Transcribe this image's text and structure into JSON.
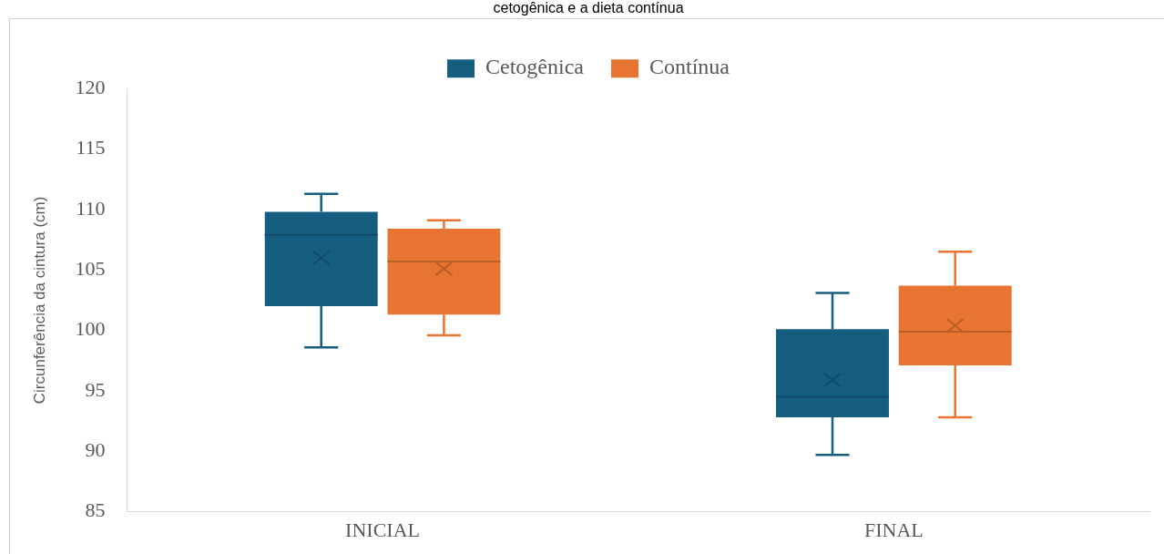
{
  "chart_data": {
    "type": "box",
    "title": "cetogênica e a dieta contínua",
    "ylabel": "Circunferência da cintura (cm)",
    "categories": [
      "INICIAL",
      "FINAL"
    ],
    "series": [
      {
        "name": "Cetogênica",
        "color": "#165e80",
        "boxes": [
          {
            "low": 98.6,
            "q1": 102.0,
            "median": 107.9,
            "q3": 109.8,
            "high": 111.3,
            "mean": 106.0
          },
          {
            "low": 89.7,
            "q1": 92.8,
            "median": 94.5,
            "q3": 100.1,
            "high": 103.1,
            "mean": 95.9
          }
        ]
      },
      {
        "name": "Contínua",
        "color": "#e87431",
        "boxes": [
          {
            "low": 99.6,
            "q1": 101.3,
            "median": 105.7,
            "q3": 108.4,
            "high": 109.1,
            "mean": 105.1
          },
          {
            "low": 92.8,
            "q1": 97.1,
            "median": 99.9,
            "q3": 103.7,
            "high": 106.5,
            "mean": 100.4
          }
        ]
      }
    ],
    "ylim": [
      85,
      120
    ],
    "yticks": [
      85,
      90,
      95,
      100,
      105,
      110,
      115,
      120
    ],
    "grid": false,
    "legend": "top"
  }
}
